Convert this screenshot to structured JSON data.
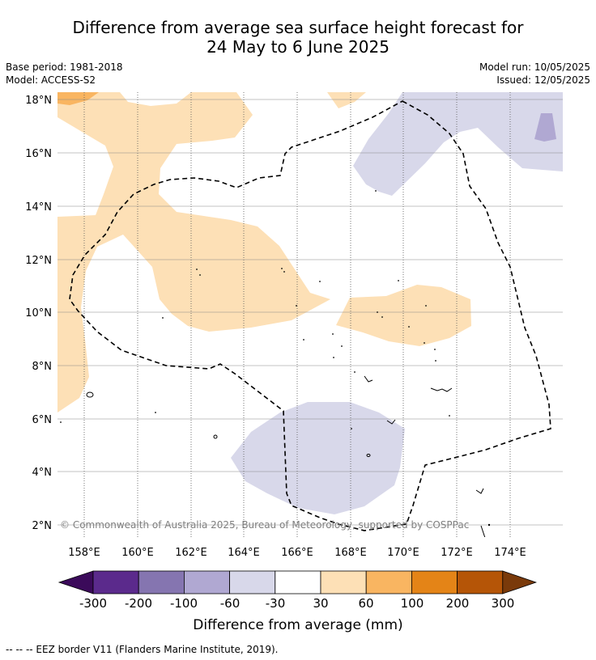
{
  "title": {
    "line1": "Difference from average sea surface height forecast for",
    "line2": "24 May to 6 June 2025"
  },
  "meta": {
    "base_period": "Base period: 1981-2018",
    "model": "Model: ACCESS-S2",
    "model_run": "Model run: 10/05/2025",
    "issued": "Issued: 12/05/2025"
  },
  "map": {
    "lon_ticks": [
      "158°E",
      "160°E",
      "162°E",
      "164°E",
      "166°E",
      "168°E",
      "170°E",
      "172°E",
      "174°E"
    ],
    "lat_ticks": [
      "2°N",
      "4°N",
      "6°N",
      "8°N",
      "10°N",
      "12°N",
      "14°N",
      "16°N",
      "18°N"
    ],
    "copyright": "© Commonwealth of Australia 2025, Bureau of Meteorology, supported by COSPPac"
  },
  "colorbar": {
    "tick_labels": [
      "-300",
      "-200",
      "-100",
      "-60",
      "-30",
      "30",
      "60",
      "100",
      "200",
      "300"
    ],
    "label": "Difference from average (mm)",
    "colors": [
      "#3b0a5a",
      "#5b2a8c",
      "#8575b0",
      "#b0a8d2",
      "#d8d8ea",
      "#ffffff",
      "#fde0b6",
      "#f9b561",
      "#e48417",
      "#b55507",
      "#7a3a0a"
    ]
  },
  "footnote": "--  --  -- EEZ border V11 (Flanders Marine Institute, 2019).",
  "colors": {
    "light_orange": "#fde0b6",
    "orange": "#f9b561",
    "light_purple": "#d8d8ea",
    "purple": "#b0a8d2",
    "gridline": "#555555"
  }
}
